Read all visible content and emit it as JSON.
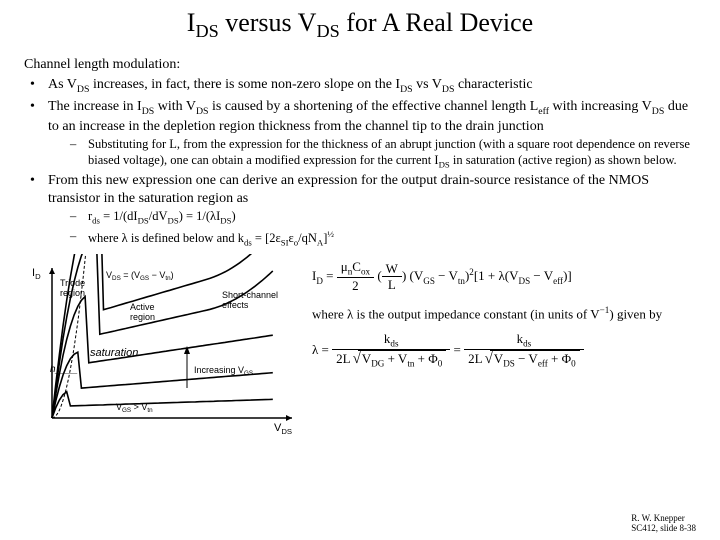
{
  "title": {
    "pre": "I",
    "sub1": "DS",
    "mid": " versus V",
    "sub2": "DS",
    "post": " for A Real Device"
  },
  "intro": "Channel length modulation:",
  "bullets": {
    "b1": {
      "pre": "As V",
      "s1": "DS",
      "mid1": " increases, in fact, there is some non-zero slope on the I",
      "s2": "DS",
      "mid2": " vs V",
      "s3": "DS",
      "post": " characteristic"
    },
    "b2": {
      "pre": "The increase in I",
      "s1": "DS",
      "mid1": " with V",
      "s2": "DS",
      "mid2": " is caused by a shortening of the effective channel length L",
      "s3": "eff",
      "mid3": " with increasing V",
      "s4": "DS",
      "post": " due to an increase in the depletion region thickness from the channel tip to the drain junction"
    },
    "b2sub": {
      "pre": "Substituting for L, from the expression for the thickness of an abrupt junction (with a square root dependence on reverse biased voltage), one can obtain a modified expression for the current I",
      "s1": "DS",
      "post": " in saturation (active region) as shown below."
    },
    "b3": "From this new expression one can derive an expression for the output drain-source resistance of the NMOS transistor in the saturation region as",
    "b3sub1": {
      "pre": "r",
      "s1": "ds",
      "mid1": " = 1/(dI",
      "s2": "DS",
      "mid2": "/dV",
      "s3": "DS",
      "mid3": ") = 1/(λI",
      "s4": "DS",
      "post": ")"
    },
    "b3sub2": {
      "pre": "where λ is defined below and k",
      "s1": "ds",
      "mid1": " = [2ε",
      "s2": "SI",
      "mid2": "ε",
      "s3": "o",
      "mid3": "/qN",
      "s4": "A",
      "mid4": "]",
      "sup1": "½",
      "post": ""
    }
  },
  "chart": {
    "ylab": "I",
    "ylab_sub": "D",
    "xlab": "V",
    "xlab_sub": "DS",
    "triode": "Triode\nregion",
    "active": "Active\nregion",
    "shortch": "Short-channel\neffects",
    "incvgs": "Increasing V",
    "incvgs_sub": "GS",
    "boundary_rel": " = (V",
    "boundary_sub2": "GS",
    "boundary_rel2": " − V",
    "boundary_sub3": "tn",
    "boundary_rel3": ")",
    "vgs_gt": " > V",
    "vgs_gt_sub2": "tn",
    "sat_hand": "saturation",
    "hand2": "h____",
    "stroke": "#000000",
    "bg": "#ffffff",
    "axis_fontsize": 11,
    "label_fontsize": 9,
    "curve_width": 1.6,
    "curves": [
      {
        "k": 0.35
      },
      {
        "k": 0.55
      },
      {
        "k": 0.75
      },
      {
        "k": 0.92
      },
      {
        "k": 1.05
      }
    ]
  },
  "equations": {
    "line1": {
      "pre": "I",
      "s1": "D",
      "eq": " = ",
      "muCox": "μ",
      "muCox_sub": "n",
      "Cox": "C",
      "Cox_sub": "ox",
      "two": "2",
      "W": "W",
      "L": "L",
      "vgs": "(V",
      "vgs_sub": "GS",
      "vtn": " − V",
      "vtn_sub": "tn",
      "sq": ")",
      "sqsup": "2",
      "post1": "[1 + λ(V",
      "post1_sub": "DS",
      "post2": " − V",
      "post2_sub": "eff",
      "post3": ")]"
    },
    "line2": {
      "pre": "where λ is the output impedance constant (in units of V",
      "sup": "−1",
      "post": ") given by"
    },
    "line3": {
      "lam": "λ = ",
      "kds": "k",
      "kds_sub": "ds",
      "two": "2L",
      "sqarg1": "V",
      "sq1_sub": "DG",
      "plus": " + V",
      "sq2_sub": "tn",
      "phi": " + Φ",
      "phi_sub": "0",
      "eq2": " = ",
      "sqargB": "V",
      "sqB_sub": "DS",
      "minus": " − V",
      "sqB2_sub": "eff"
    }
  },
  "footer": {
    "name": "R. W. Knepper",
    "course": "SC412, slide 8-38"
  }
}
